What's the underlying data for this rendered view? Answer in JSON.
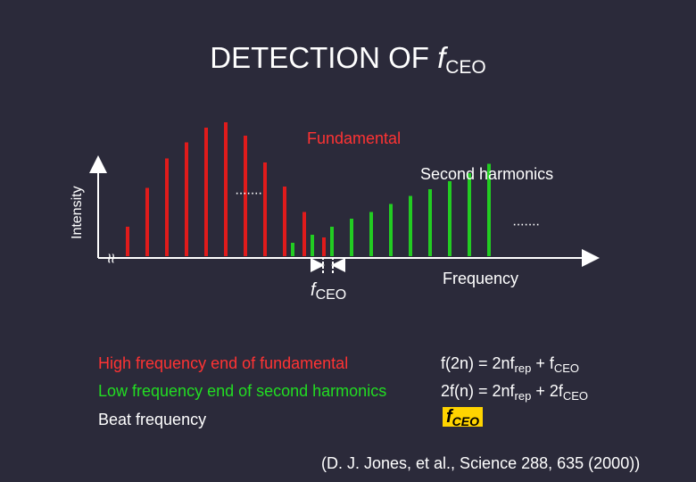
{
  "title": {
    "main": "DETECTION OF ",
    "f": "f",
    "sub": "CEO"
  },
  "colors": {
    "background": "#2b2a3a",
    "fundamental": "#e01b1b",
    "harmonic": "#22cc22",
    "text_red": "#ff3333",
    "text_white": "#ffffff",
    "highlight": "#ffd400"
  },
  "diagram": {
    "y_axis_label": "Intensity",
    "x_axis_label": "Frequency",
    "fundamental_label": "Fundamental",
    "harmonic_label": "Second harmonics",
    "ellipsis": "·······",
    "fceo_f": "f",
    "fceo_sub": "CEO",
    "axis_break": "≈",
    "fundamental_lines": [
      0.22,
      0.51,
      0.73,
      0.85,
      0.96,
      1.0,
      0.9,
      0.7,
      0.52,
      0.33,
      0.14
    ],
    "harmonic_lines": [
      0.1,
      0.16,
      0.22,
      0.28,
      0.33,
      0.39,
      0.45,
      0.5,
      0.56,
      0.62,
      0.69
    ]
  },
  "notes": {
    "line1_text": "High frequency end of fundamental",
    "line2_text": "Low frequency end of second harmonics",
    "line3_text": "Beat frequency"
  },
  "equations": {
    "eq1_a": "f(2n) = 2nf",
    "eq1_rep": "rep",
    "eq1_b": " + f",
    "eq1_ceo": "CEO",
    "eq2_a": "2f(n) = 2nf",
    "eq2_rep": "rep",
    "eq2_b": " + 2f",
    "eq2_ceo": "CEO",
    "beat_f": "f",
    "beat_sub": "CEO"
  },
  "citation": "(D. J. Jones, et al., Science 288, 635 (2000))"
}
